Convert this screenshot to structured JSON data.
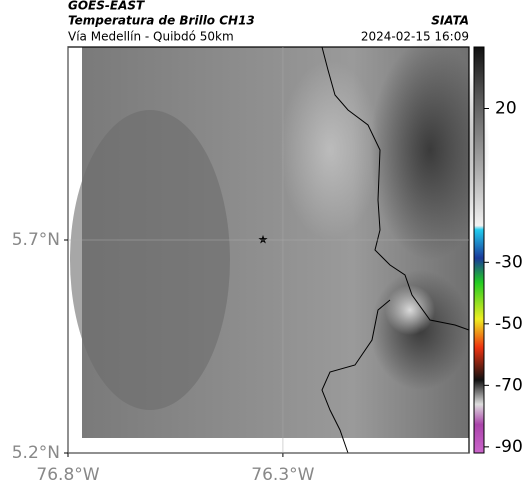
{
  "header": {
    "source": "GOES-EAST",
    "product": "Temperatura de Brillo CH13",
    "agency": "SIATA",
    "route": "Vía Medellín - Quibdó 50km",
    "timestamp": "2024-02-15 16:09"
  },
  "map": {
    "xlim": [
      -76.8,
      -75.867
    ],
    "ylim": [
      5.2,
      6.153
    ],
    "grid": true,
    "xticks": [
      {
        "value": -76.8,
        "label": "76.8°W"
      },
      {
        "value": -76.3,
        "label": "76.3°W"
      }
    ],
    "yticks": [
      {
        "value": 5.2,
        "label": "5.2°N"
      },
      {
        "value": 5.7,
        "label": "5.7°N"
      }
    ]
  },
  "colorbar": {
    "clim": [
      -92,
      40
    ],
    "ticks": [
      20,
      -30,
      -50,
      -70,
      -90
    ]
  }
}
